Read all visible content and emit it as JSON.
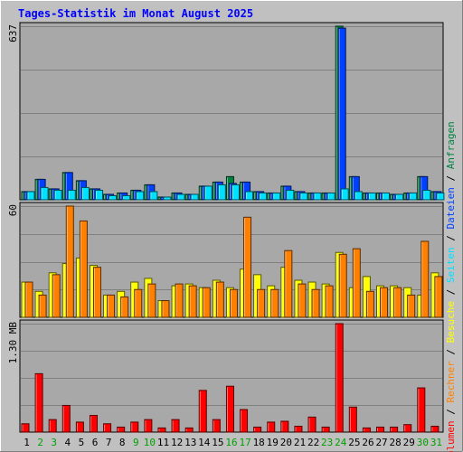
{
  "title": "Tages-Statistik im Monat August 2025",
  "colors": {
    "background": "#c0c0c0",
    "plot_bg": "#a8a8a8",
    "grid": "#808080",
    "title": "#0000ff",
    "hits": "#008040",
    "files": "#0040ff",
    "pages": "#00e0ff",
    "visits": "#ffff00",
    "sites": "#ff8000",
    "kbytes": "#ff0000",
    "weekend": "#00a000",
    "weekday": "#000000"
  },
  "legend_right": [
    {
      "text": "Anfragen",
      "series": "hits"
    },
    {
      "text": "Dateien",
      "series": "files"
    },
    {
      "text": "Seiten",
      "series": "pages"
    },
    {
      "text": "Besuche",
      "series": "visits"
    },
    {
      "text": "Rechner",
      "series": "sites"
    },
    {
      "text": "Volumen",
      "series": "kbytes"
    }
  ],
  "legend_sep": " / ",
  "chart_data": [
    {
      "type": "bar",
      "ymax_label": "637",
      "ylim": [
        0,
        637
      ],
      "categories": [
        "1",
        "2",
        "3",
        "4",
        "5",
        "6",
        "7",
        "8",
        "9",
        "10",
        "11",
        "12",
        "13",
        "14",
        "15",
        "16",
        "17",
        "18",
        "19",
        "20",
        "21",
        "22",
        "23",
        "24",
        "25",
        "26",
        "27",
        "28",
        "29",
        "30",
        "31"
      ],
      "weekend_days": [
        "2",
        "3",
        "9",
        "10",
        "16",
        "17",
        "23",
        "24",
        "30",
        "31"
      ],
      "series": [
        {
          "name": "Anfragen",
          "color_key": "hits",
          "values": [
            30,
            75,
            40,
            100,
            70,
            40,
            20,
            25,
            35,
            55,
            10,
            25,
            20,
            50,
            65,
            85,
            65,
            30,
            25,
            50,
            30,
            25,
            25,
            637,
            85,
            25,
            25,
            20,
            25,
            85,
            30
          ]
        },
        {
          "name": "Dateien",
          "color_key": "files",
          "values": [
            30,
            75,
            40,
            100,
            70,
            40,
            20,
            25,
            35,
            55,
            10,
            25,
            20,
            50,
            65,
            60,
            65,
            30,
            25,
            50,
            30,
            25,
            25,
            630,
            85,
            25,
            25,
            20,
            25,
            85,
            30
          ]
        },
        {
          "name": "Seiten",
          "color_key": "pages",
          "values": [
            30,
            45,
            35,
            35,
            45,
            35,
            15,
            15,
            30,
            30,
            10,
            20,
            20,
            50,
            55,
            55,
            30,
            25,
            25,
            35,
            25,
            25,
            25,
            40,
            30,
            25,
            25,
            20,
            25,
            35,
            25
          ]
        }
      ]
    },
    {
      "type": "bar",
      "ymax_label": "60",
      "ylim": [
        0,
        60
      ],
      "series": [
        {
          "name": "Besuche",
          "color_key": "visits",
          "values": [
            19,
            14,
            24,
            29,
            32,
            28,
            12,
            14,
            19,
            21,
            9,
            17,
            18,
            16,
            20,
            16,
            26,
            23,
            17,
            27,
            20,
            19,
            18,
            35,
            16,
            22,
            17,
            17,
            16,
            12,
            24
          ]
        },
        {
          "name": "Rechner",
          "color_key": "sites",
          "values": [
            19,
            12,
            23,
            60,
            52,
            27,
            12,
            11,
            15,
            18,
            9,
            18,
            17,
            16,
            19,
            15,
            54,
            15,
            15,
            36,
            18,
            15,
            17,
            34,
            37,
            14,
            16,
            16,
            12,
            41,
            22
          ]
        }
      ]
    },
    {
      "type": "bar",
      "ymax_label": "1.30 MB",
      "ylim": [
        0,
        1.3
      ],
      "series": [
        {
          "name": "Volumen",
          "color_key": "kbytes",
          "values": [
            0.1,
            0.7,
            0.15,
            0.32,
            0.12,
            0.2,
            0.1,
            0.06,
            0.12,
            0.15,
            0.05,
            0.15,
            0.05,
            0.5,
            0.15,
            0.55,
            0.27,
            0.06,
            0.12,
            0.13,
            0.07,
            0.18,
            0.06,
            1.3,
            0.3,
            0.05,
            0.06,
            0.06,
            0.09,
            0.53,
            0.07
          ]
        }
      ]
    }
  ]
}
